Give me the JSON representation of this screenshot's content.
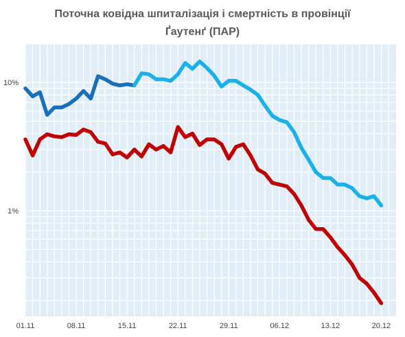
{
  "chart_data": {
    "type": "line",
    "title_line1": "Поточна ковідна шпиталізація і смертність  в провінції",
    "title_line2": "Ґаутенґ (ПАР)",
    "y_scale": "log",
    "ylim": [
      0.15,
      20
    ],
    "y_ticks": [
      {
        "value": 10,
        "label": "10%"
      },
      {
        "value": 1,
        "label": "1%"
      }
    ],
    "x_range": [
      1,
      51
    ],
    "x_ticks": [
      {
        "x": 1,
        "label": "01.11"
      },
      {
        "x": 8,
        "label": "08.11"
      },
      {
        "x": 15,
        "label": "15.11"
      },
      {
        "x": 22,
        "label": "22.11"
      },
      {
        "x": 29,
        "label": "29.11"
      },
      {
        "x": 36,
        "label": "06.12"
      },
      {
        "x": 43,
        "label": "13.12"
      },
      {
        "x": 50,
        "label": "20.12"
      }
    ],
    "grid": true,
    "legend": "none",
    "series": [
      {
        "color_segments": [
          "#1a6fb8",
          "#1ab0ea"
        ],
        "color_change_after_index": 15,
        "values": [
          9.0,
          7.8,
          8.4,
          5.6,
          6.4,
          6.4,
          6.8,
          7.5,
          8.6,
          7.5,
          11.2,
          10.6,
          9.8,
          9.5,
          9.7,
          9.5,
          11.8,
          11.6,
          10.6,
          10.6,
          10.3,
          11.6,
          14.2,
          12.8,
          14.6,
          13.0,
          11.3,
          9.3,
          10.3,
          10.3,
          9.5,
          8.8,
          8.0,
          6.6,
          5.5,
          5.1,
          4.9,
          4.1,
          3.1,
          2.5,
          2.0,
          1.8,
          1.8,
          1.6,
          1.6,
          1.5,
          1.3,
          1.25,
          1.3,
          1.1
        ]
      },
      {
        "color_segments": [
          "#c00000"
        ],
        "values": [
          3.6,
          2.7,
          3.6,
          3.95,
          3.8,
          3.75,
          3.95,
          3.9,
          4.3,
          4.1,
          3.45,
          3.35,
          2.75,
          2.85,
          2.6,
          3.0,
          2.65,
          3.3,
          3.0,
          3.2,
          2.85,
          4.5,
          3.75,
          4.0,
          3.25,
          3.6,
          3.6,
          3.3,
          2.55,
          3.15,
          3.3,
          2.7,
          2.1,
          1.95,
          1.65,
          1.6,
          1.55,
          1.35,
          1.1,
          0.85,
          0.72,
          0.72,
          0.62,
          0.52,
          0.45,
          0.38,
          0.3,
          0.27,
          0.23,
          0.19
        ]
      }
    ]
  }
}
